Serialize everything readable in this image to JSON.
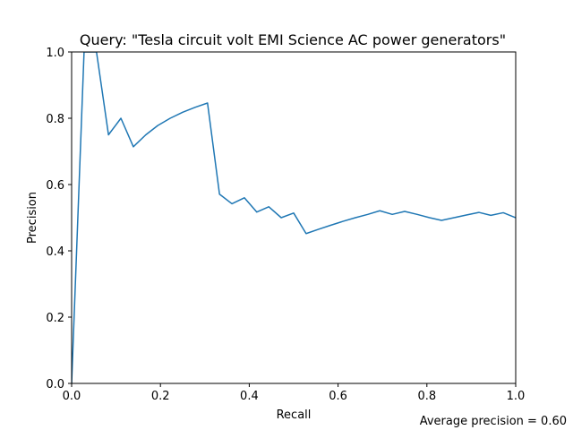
{
  "chart_data": {
    "type": "line",
    "title": "Query: \"Tesla circuit volt EMI Science AC power generators\"",
    "xlabel": "Recall",
    "ylabel": "Precision",
    "xlim": [
      0.0,
      1.0
    ],
    "ylim": [
      0.0,
      1.0
    ],
    "x_ticks": [
      "0.0",
      "0.2",
      "0.4",
      "0.6",
      "0.8",
      "1.0"
    ],
    "y_ticks": [
      "0.0",
      "0.2",
      "0.4",
      "0.6",
      "0.8",
      "1.0"
    ],
    "x_tick_values": [
      0.0,
      0.2,
      0.4,
      0.6,
      0.8,
      1.0
    ],
    "y_tick_values": [
      0.0,
      0.2,
      0.4,
      0.6,
      0.8,
      1.0
    ],
    "grid": false,
    "legend": "none",
    "annotation": "Average precision = 0.60",
    "series": [
      {
        "color": "#1f77b4",
        "x": [
          0.0,
          0.028,
          0.056,
          0.083,
          0.111,
          0.139,
          0.167,
          0.194,
          0.222,
          0.25,
          0.278,
          0.306,
          0.333,
          0.361,
          0.389,
          0.417,
          0.444,
          0.472,
          0.5,
          0.528,
          0.556,
          0.583,
          0.611,
          0.639,
          0.667,
          0.694,
          0.722,
          0.75,
          0.778,
          0.806,
          0.833,
          0.861,
          0.889,
          0.917,
          0.944,
          0.972,
          1.0
        ],
        "y": [
          0.0,
          1.0,
          1.0,
          0.75,
          0.8,
          0.714,
          0.75,
          0.778,
          0.8,
          0.818,
          0.833,
          0.846,
          0.571,
          0.542,
          0.56,
          0.517,
          0.533,
          0.5,
          0.514,
          0.452,
          0.465,
          0.477,
          0.489,
          0.5,
          0.51,
          0.521,
          0.51,
          0.519,
          0.51,
          0.5,
          0.492,
          0.5,
          0.508,
          0.516,
          0.507,
          0.515,
          0.5
        ]
      }
    ]
  }
}
